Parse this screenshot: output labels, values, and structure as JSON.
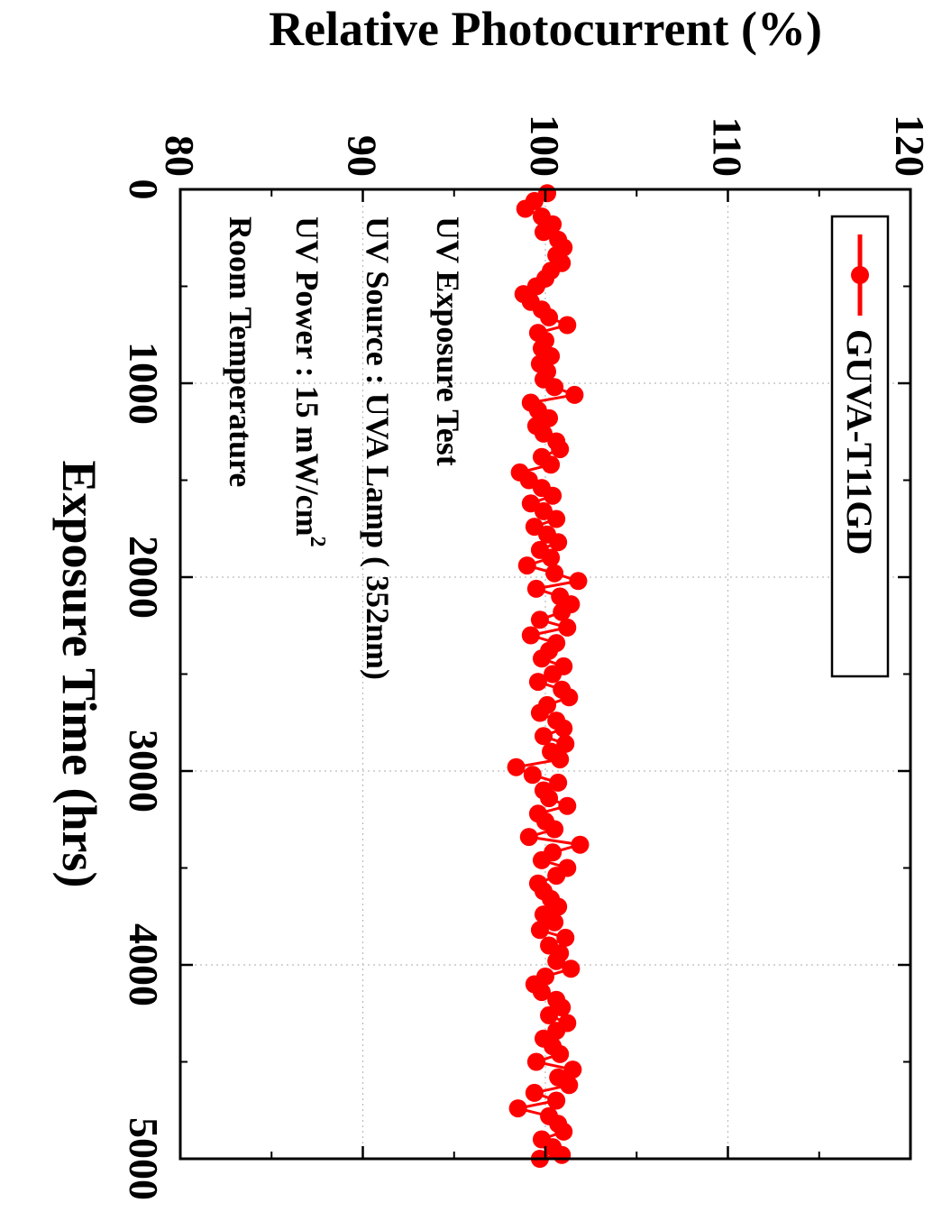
{
  "chart_data": {
    "type": "scatter",
    "title": "",
    "xlabel": "Exposure Time (hrs)",
    "ylabel": "Relative Photocurrent (%)",
    "xlim": [
      0,
      5000
    ],
    "ylim": [
      80,
      120
    ],
    "x_ticks": [
      "0",
      "1000",
      "2000",
      "3000",
      "4000",
      "5000"
    ],
    "y_ticks": [
      "80",
      "90",
      "100",
      "110",
      "120"
    ],
    "orientation": "rotated-90-clockwise",
    "grid": "dotted",
    "legend": {
      "label": "GUVA-T11GD",
      "placement": "bottom-right (rotated view)"
    },
    "annotations": [
      "UV Exposure Test",
      "UV Source : UVA Lamp ( 352nm)",
      "UV Power : 15 mW/cm",
      "Room Temperature"
    ],
    "annotation_superscript": "2",
    "series": [
      {
        "name": "GUVA-T11GD",
        "color": "#ff0000",
        "marker": "circle",
        "x": [
          20,
          60,
          100,
          140,
          180,
          220,
          260,
          300,
          340,
          380,
          420,
          460,
          500,
          540,
          580,
          620,
          660,
          700,
          740,
          780,
          820,
          860,
          900,
          940,
          980,
          1020,
          1060,
          1100,
          1140,
          1180,
          1220,
          1260,
          1300,
          1340,
          1380,
          1420,
          1460,
          1500,
          1540,
          1580,
          1620,
          1660,
          1700,
          1740,
          1780,
          1820,
          1860,
          1900,
          1940,
          1980,
          2020,
          2060,
          2100,
          2140,
          2180,
          2220,
          2260,
          2300,
          2340,
          2380,
          2420,
          2460,
          2500,
          2540,
          2580,
          2620,
          2660,
          2700,
          2740,
          2780,
          2820,
          2860,
          2900,
          2940,
          2980,
          3020,
          3060,
          3100,
          3140,
          3180,
          3220,
          3260,
          3300,
          3340,
          3380,
          3420,
          3460,
          3500,
          3540,
          3580,
          3620,
          3660,
          3700,
          3740,
          3780,
          3820,
          3860,
          3900,
          3940,
          3980,
          4020,
          4060,
          4100,
          4140,
          4180,
          4220,
          4260,
          4300,
          4340,
          4380,
          4420,
          4460,
          4500,
          4540,
          4580,
          4620,
          4660,
          4700,
          4740,
          4780,
          4820,
          4860,
          4900,
          4940,
          4980,
          5020
        ],
        "y": [
          100.1,
          99.4,
          98.9,
          99.8,
          100.4,
          99.9,
          100.7,
          101.0,
          100.6,
          100.9,
          100.3,
          100.0,
          99.5,
          98.8,
          99.2,
          99.8,
          100.2,
          101.2,
          99.6,
          100.0,
          99.8,
          100.3,
          99.7,
          100.1,
          99.9,
          100.5,
          101.6,
          99.2,
          99.6,
          100.2,
          99.5,
          99.9,
          100.6,
          100.8,
          99.8,
          100.3,
          98.6,
          99.1,
          99.8,
          100.4,
          99.2,
          99.9,
          100.6,
          99.4,
          100.1,
          100.7,
          99.7,
          100.3,
          99.0,
          100.5,
          101.8,
          99.5,
          100.8,
          101.4,
          100.9,
          99.7,
          101.2,
          99.2,
          100.6,
          100.2,
          99.8,
          101.0,
          100.4,
          99.6,
          100.9,
          101.3,
          100.1,
          99.7,
          100.6,
          101.0,
          99.9,
          101.1,
          100.3,
          100.8,
          98.4,
          99.3,
          100.7,
          99.9,
          100.2,
          101.2,
          99.6,
          100.0,
          100.5,
          99.1,
          101.9,
          100.4,
          99.8,
          101.2,
          100.6,
          99.6,
          99.9,
          100.3,
          100.7,
          99.9,
          100.5,
          99.7,
          101.1,
          100.2,
          100.8,
          100.6,
          101.4,
          100.0,
          99.4,
          99.8,
          100.6,
          100.9,
          100.2,
          101.2,
          100.6,
          99.9,
          100.4,
          100.8,
          99.5,
          101.5,
          100.7,
          101.3,
          99.4,
          100.6,
          98.5,
          100.2,
          100.7,
          101.0,
          99.8,
          100.4,
          100.9,
          99.7
        ]
      }
    ]
  }
}
